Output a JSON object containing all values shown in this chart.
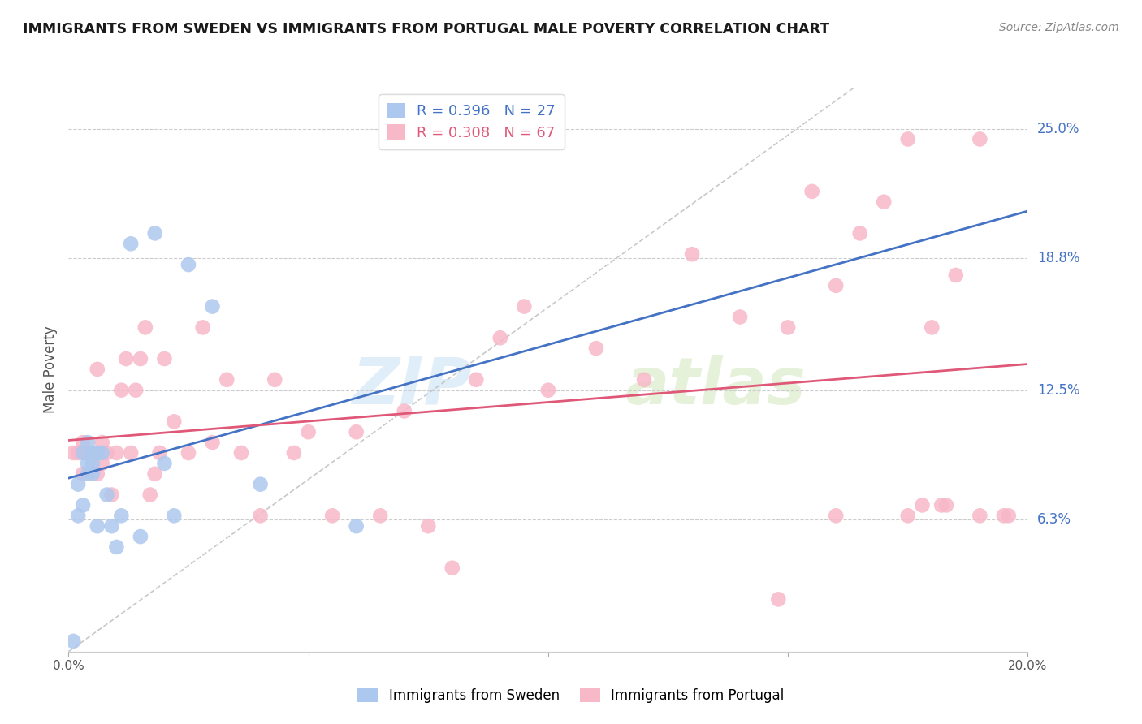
{
  "title": "IMMIGRANTS FROM SWEDEN VS IMMIGRANTS FROM PORTUGAL MALE POVERTY CORRELATION CHART",
  "source": "Source: ZipAtlas.com",
  "ylabel": "Male Poverty",
  "yticks": [
    0.0,
    0.063,
    0.125,
    0.188,
    0.25
  ],
  "ytick_labels": [
    "",
    "6.3%",
    "12.5%",
    "18.8%",
    "25.0%"
  ],
  "xmin": 0.0,
  "xmax": 0.2,
  "ymin": 0.0,
  "ymax": 0.27,
  "sweden_color": "#adc8ee",
  "portugal_color": "#f7b8c8",
  "sweden_line_color": "#4472c4",
  "portugal_line_color": "#e05878",
  "sweden_R": 0.396,
  "sweden_N": 27,
  "portugal_R": 0.308,
  "portugal_N": 67,
  "sweden_x": [
    0.001,
    0.002,
    0.002,
    0.003,
    0.003,
    0.004,
    0.004,
    0.004,
    0.005,
    0.005,
    0.005,
    0.006,
    0.006,
    0.007,
    0.008,
    0.009,
    0.01,
    0.011,
    0.013,
    0.015,
    0.018,
    0.02,
    0.022,
    0.025,
    0.03,
    0.04,
    0.06
  ],
  "sweden_y": [
    0.005,
    0.065,
    0.08,
    0.07,
    0.095,
    0.085,
    0.09,
    0.1,
    0.09,
    0.095,
    0.085,
    0.095,
    0.06,
    0.095,
    0.075,
    0.06,
    0.05,
    0.065,
    0.195,
    0.055,
    0.2,
    0.09,
    0.065,
    0.185,
    0.165,
    0.08,
    0.06
  ],
  "portugal_x": [
    0.001,
    0.002,
    0.003,
    0.003,
    0.004,
    0.004,
    0.005,
    0.005,
    0.006,
    0.006,
    0.007,
    0.007,
    0.008,
    0.009,
    0.01,
    0.011,
    0.012,
    0.013,
    0.014,
    0.015,
    0.016,
    0.017,
    0.018,
    0.019,
    0.02,
    0.022,
    0.025,
    0.028,
    0.03,
    0.033,
    0.036,
    0.04,
    0.043,
    0.047,
    0.05,
    0.055,
    0.06,
    0.065,
    0.07,
    0.075,
    0.08,
    0.085,
    0.09,
    0.095,
    0.1,
    0.11,
    0.12,
    0.13,
    0.14,
    0.15,
    0.155,
    0.16,
    0.165,
    0.17,
    0.175,
    0.18,
    0.185,
    0.19,
    0.148,
    0.16,
    0.175,
    0.183,
    0.19,
    0.195,
    0.178,
    0.182,
    0.196
  ],
  "portugal_y": [
    0.095,
    0.095,
    0.1,
    0.085,
    0.095,
    0.095,
    0.095,
    0.095,
    0.135,
    0.085,
    0.1,
    0.09,
    0.095,
    0.075,
    0.095,
    0.125,
    0.14,
    0.095,
    0.125,
    0.14,
    0.155,
    0.075,
    0.085,
    0.095,
    0.14,
    0.11,
    0.095,
    0.155,
    0.1,
    0.13,
    0.095,
    0.065,
    0.13,
    0.095,
    0.105,
    0.065,
    0.105,
    0.065,
    0.115,
    0.06,
    0.04,
    0.13,
    0.15,
    0.165,
    0.125,
    0.145,
    0.13,
    0.19,
    0.16,
    0.155,
    0.22,
    0.175,
    0.2,
    0.215,
    0.245,
    0.155,
    0.18,
    0.245,
    0.025,
    0.065,
    0.065,
    0.07,
    0.065,
    0.065,
    0.07,
    0.07,
    0.065
  ],
  "watermark_zip": "ZIP",
  "watermark_atlas": "atlas",
  "grid_color": "#cccccc",
  "bg_color": "#ffffff",
  "xtick_positions": [
    0.0,
    0.05,
    0.1,
    0.15,
    0.2
  ],
  "diag_line_color": "#bbbbbb"
}
